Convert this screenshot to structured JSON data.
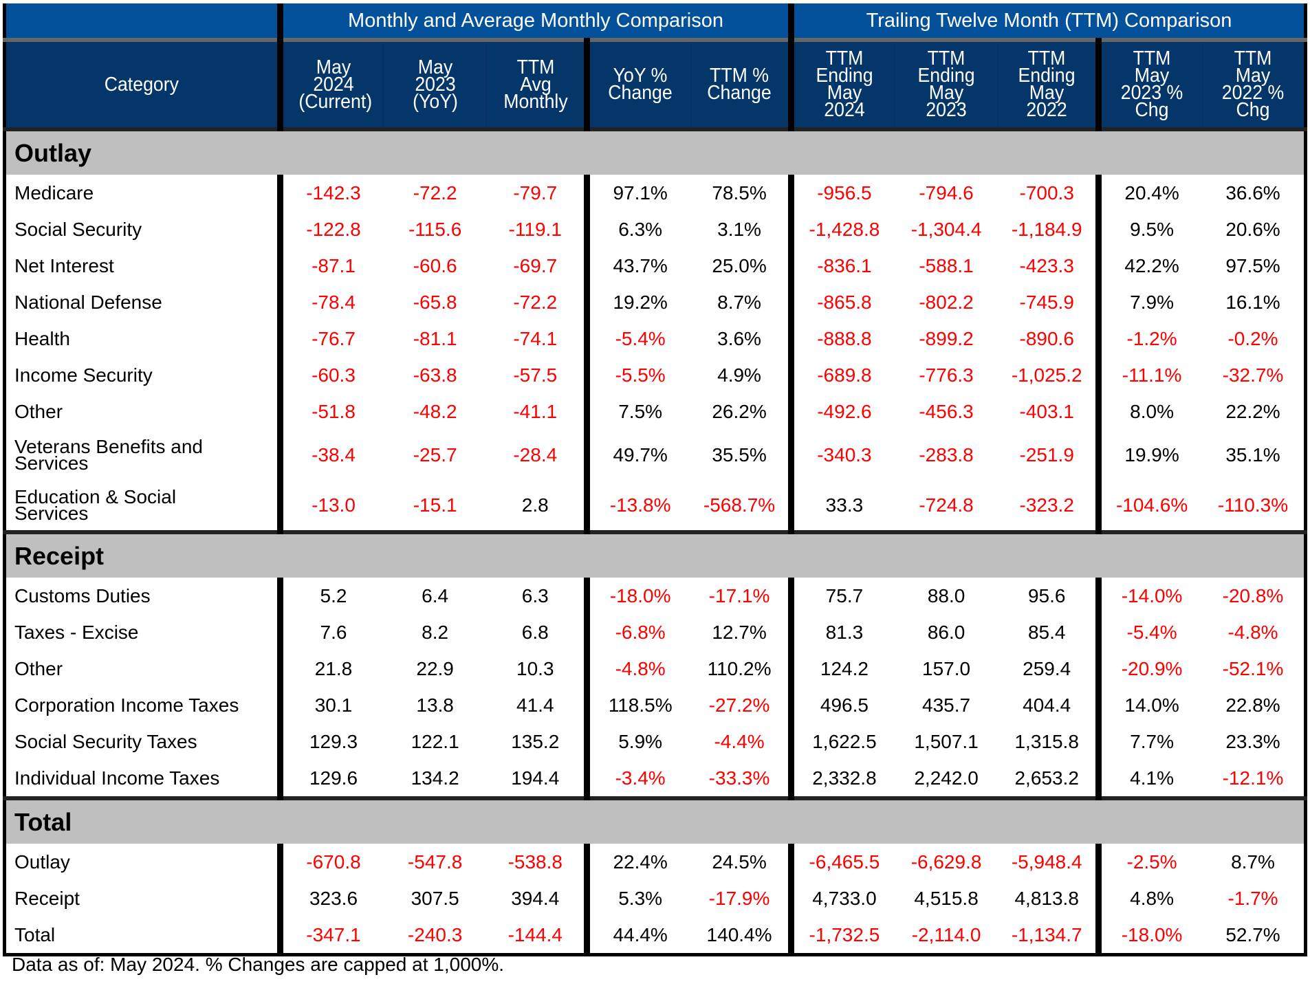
{
  "header": {
    "group1": "Monthly and Average Monthly Comparison",
    "group2": "Trailing Twelve Month (TTM) Comparison",
    "columns": [
      "Category",
      "May 2024 (Current)",
      "May 2023 (YoY)",
      "TTM Avg Monthly",
      "YoY % Change",
      "TTM % Change",
      "TTM Ending May 2024",
      "TTM Ending May 2023",
      "TTM Ending May 2022",
      "TTM May 2023 % Chg",
      "TTM May 2022 % Chg"
    ]
  },
  "sections": [
    {
      "title": "Outlay",
      "rows": [
        [
          "Medicare",
          "-142.3",
          "-72.2",
          "-79.7",
          "97.1%",
          "78.5%",
          "-956.5",
          "-794.6",
          "-700.3",
          "20.4%",
          "36.6%"
        ],
        [
          "Social Security",
          "-122.8",
          "-115.6",
          "-119.1",
          "6.3%",
          "3.1%",
          "-1,428.8",
          "-1,304.4",
          "-1,184.9",
          "9.5%",
          "20.6%"
        ],
        [
          "Net Interest",
          "-87.1",
          "-60.6",
          "-69.7",
          "43.7%",
          "25.0%",
          "-836.1",
          "-588.1",
          "-423.3",
          "42.2%",
          "97.5%"
        ],
        [
          "National Defense",
          "-78.4",
          "-65.8",
          "-72.2",
          "19.2%",
          "8.7%",
          "-865.8",
          "-802.2",
          "-745.9",
          "7.9%",
          "16.1%"
        ],
        [
          "Health",
          "-76.7",
          "-81.1",
          "-74.1",
          "-5.4%",
          "3.6%",
          "-888.8",
          "-899.2",
          "-890.6",
          "-1.2%",
          "-0.2%"
        ],
        [
          "Income Security",
          "-60.3",
          "-63.8",
          "-57.5",
          "-5.5%",
          "4.9%",
          "-689.8",
          "-776.3",
          "-1,025.2",
          "-11.1%",
          "-32.7%"
        ],
        [
          "Other",
          "-51.8",
          "-48.2",
          "-41.1",
          "7.5%",
          "26.2%",
          "-492.6",
          "-456.3",
          "-403.1",
          "8.0%",
          "22.2%"
        ],
        [
          "Veterans Benefits and Services",
          "-38.4",
          "-25.7",
          "-28.4",
          "49.7%",
          "35.5%",
          "-340.3",
          "-283.8",
          "-251.9",
          "19.9%",
          "35.1%"
        ],
        [
          "Education & Social Services",
          "-13.0",
          "-15.1",
          "2.8",
          "-13.8%",
          "-568.7%",
          "33.3",
          "-724.8",
          "-323.2",
          "-104.6%",
          "-110.3%"
        ]
      ]
    },
    {
      "title": "Receipt",
      "rows": [
        [
          "Customs Duties",
          "5.2",
          "6.4",
          "6.3",
          "-18.0%",
          "-17.1%",
          "75.7",
          "88.0",
          "95.6",
          "-14.0%",
          "-20.8%"
        ],
        [
          "Taxes - Excise",
          "7.6",
          "8.2",
          "6.8",
          "-6.8%",
          "12.7%",
          "81.3",
          "86.0",
          "85.4",
          "-5.4%",
          "-4.8%"
        ],
        [
          "Other",
          "21.8",
          "22.9",
          "10.3",
          "-4.8%",
          "110.2%",
          "124.2",
          "157.0",
          "259.4",
          "-20.9%",
          "-52.1%"
        ],
        [
          "Corporation Income Taxes",
          "30.1",
          "13.8",
          "41.4",
          "118.5%",
          "-27.2%",
          "496.5",
          "435.7",
          "404.4",
          "14.0%",
          "22.8%"
        ],
        [
          "Social Security Taxes",
          "129.3",
          "122.1",
          "135.2",
          "5.9%",
          "-4.4%",
          "1,622.5",
          "1,507.1",
          "1,315.8",
          "7.7%",
          "23.3%"
        ],
        [
          "Individual Income Taxes",
          "129.6",
          "134.2",
          "194.4",
          "-3.4%",
          "-33.3%",
          "2,332.8",
          "2,242.0",
          "2,653.2",
          "4.1%",
          "-12.1%"
        ]
      ]
    },
    {
      "title": "Total",
      "rows": [
        [
          "Outlay",
          "-670.8",
          "-547.8",
          "-538.8",
          "22.4%",
          "24.5%",
          "-6,465.5",
          "-6,629.8",
          "-5,948.4",
          "-2.5%",
          "8.7%"
        ],
        [
          "Receipt",
          "323.6",
          "307.5",
          "394.4",
          "5.3%",
          "-17.9%",
          "4,733.0",
          "4,515.8",
          "4,813.8",
          "4.8%",
          "-1.7%"
        ],
        [
          "Total",
          "-347.1",
          "-240.3",
          "-144.4",
          "44.4%",
          "140.4%",
          "-1,732.5",
          "-2,114.0",
          "-1,134.7",
          "-18.0%",
          "52.7%"
        ]
      ]
    }
  ],
  "footer": "Data as of: May 2024. % Changes are capped at 1,000%.",
  "colors": {
    "header_top": "#03519B",
    "header": "#04366A",
    "section": "#BFBFBF",
    "negative": "#FF0000"
  }
}
